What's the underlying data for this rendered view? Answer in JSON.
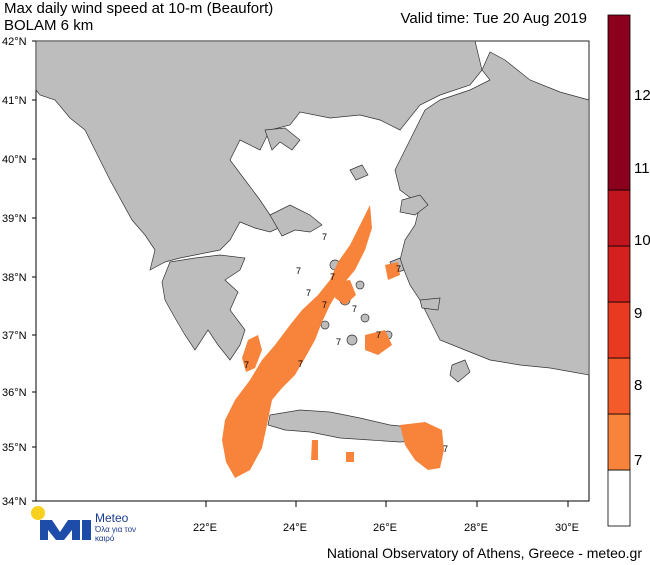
{
  "title": "Max daily wind speed at 10-m (Beaufort)",
  "model": "BOLAM 6 km",
  "valid_time": "Valid time: Tue 20 Aug 2019",
  "footer": "National Observatory of Athens, Greece - meteo.gr",
  "logo": {
    "name": "Meteo",
    "tagline": "Όλα για τον καιρό"
  },
  "lat_labels": [
    "42°N",
    "41°N",
    "40°N",
    "39°N",
    "38°N",
    "37°N",
    "36°N",
    "35°N",
    "34°N"
  ],
  "lon_labels": [
    "22°E",
    "24°E",
    "26°E",
    "28°E",
    "30°E"
  ],
  "colorbar": {
    "labels": [
      "7",
      "8",
      "9",
      "10",
      "11",
      "12"
    ],
    "colors": [
      "#ffffff",
      "#f8833a",
      "#f35b2a",
      "#e83a21",
      "#d4211f",
      "#b51121",
      "#8b001c"
    ]
  },
  "wind_value_marks": [
    "7",
    "7",
    "7",
    "7",
    "7",
    "7",
    "7",
    "7",
    "7",
    "7",
    "7",
    "7"
  ],
  "colors": {
    "land": "#bdbdbd",
    "sea": "#ffffff",
    "wind7": "#f8833a"
  }
}
